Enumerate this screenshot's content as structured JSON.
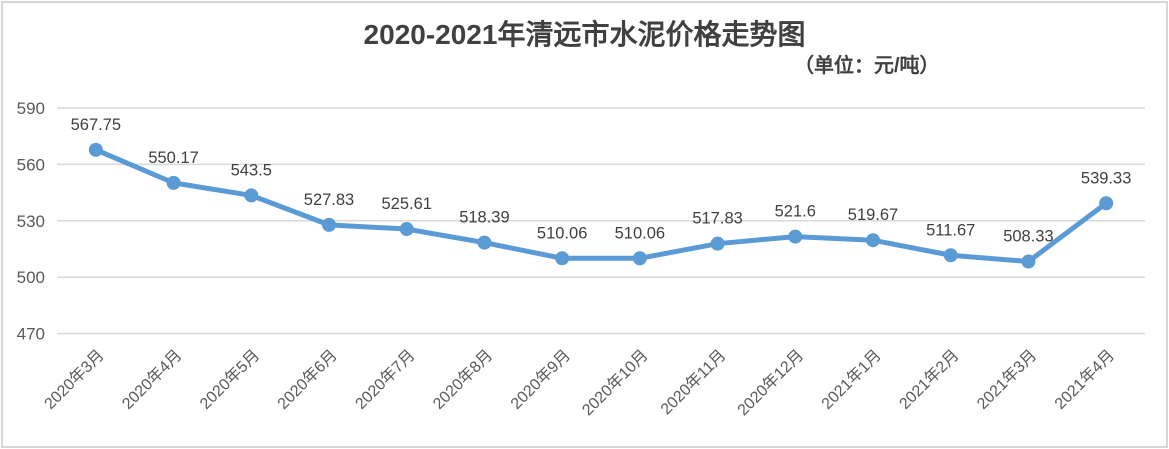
{
  "chart_data": {
    "type": "line",
    "title": "2020-2021年清远市水泥价格走势图",
    "subtitle": "（单位：元/吨）",
    "categories": [
      "2020年3月",
      "2020年4月",
      "2020年5月",
      "2020年6月",
      "2020年7月",
      "2020年8月",
      "2020年9月",
      "2020年10月",
      "2020年11月",
      "2020年12月",
      "2021年1月",
      "2021年2月",
      "2021年3月",
      "2021年4月"
    ],
    "values": [
      567.75,
      550.17,
      543.5,
      527.83,
      525.61,
      518.39,
      510.06,
      510.06,
      517.83,
      521.6,
      519.67,
      511.67,
      508.33,
      539.33
    ],
    "data_labels": [
      "567.75",
      "550.17",
      "543.5",
      "527.83",
      "525.61",
      "518.39",
      "510.06",
      "510.06",
      "517.83",
      "521.6",
      "519.67",
      "511.67",
      "508.33",
      "539.33"
    ],
    "y_ticks": [
      470,
      500,
      530,
      560,
      590
    ],
    "ylim": [
      470,
      590
    ],
    "xlabel": "",
    "ylabel": "",
    "grid": true,
    "legend_position": "none",
    "colors": {
      "line": "#5B9BD5",
      "marker": "#5B9BD5",
      "gridline": "#D9D9D9",
      "axis_label": "#595959",
      "data_label": "#404040",
      "title": "#404040",
      "frame_border": "#D6D6D6",
      "background": "#FFFFFF"
    }
  }
}
